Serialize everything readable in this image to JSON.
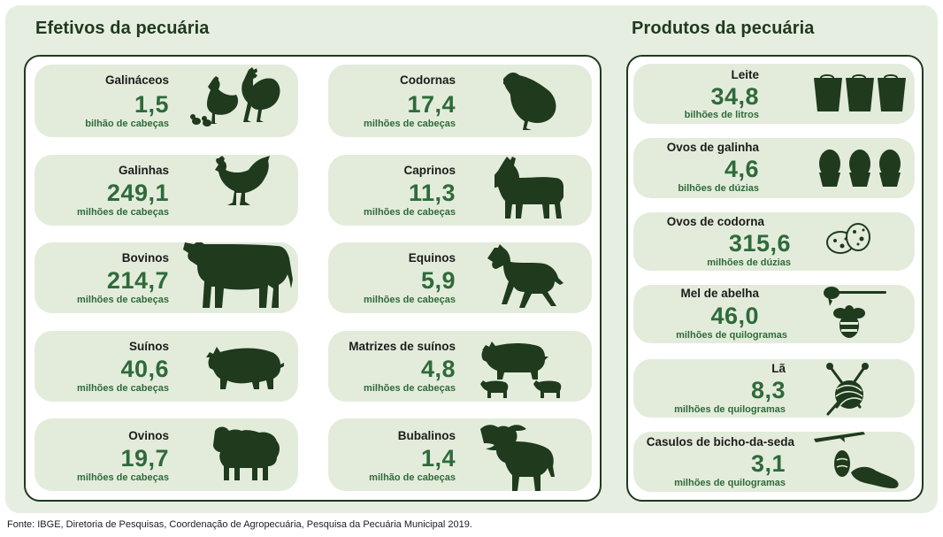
{
  "headings": {
    "efetivos": "Efetivos da pecuária",
    "produtos": "Produtos da pecuária"
  },
  "efetivos": {
    "galinaceos": {
      "label": "Galináceos",
      "value": "1,5",
      "unit": "bilhão de cabeças",
      "icon": "rooster-hen-chick-icon"
    },
    "galinhas": {
      "label": "Galinhas",
      "value": "249,1",
      "unit": "milhões de cabeças",
      "icon": "hen-icon"
    },
    "bovinos": {
      "label": "Bovinos",
      "value": "214,7",
      "unit": "milhões de cabeças",
      "icon": "cow-icon"
    },
    "suinos": {
      "label": "Suínos",
      "value": "40,6",
      "unit": "milhões de cabeças",
      "icon": "pig-icon"
    },
    "ovinos": {
      "label": "Ovinos",
      "value": "19,7",
      "unit": "milhões de cabeças",
      "icon": "sheep-icon"
    },
    "codornas": {
      "label": "Codornas",
      "value": "17,4",
      "unit": "milhões de cabeças",
      "icon": "quail-icon"
    },
    "caprinos": {
      "label": "Caprinos",
      "value": "11,3",
      "unit": "milhões de cabeças",
      "icon": "goat-icon"
    },
    "equinos": {
      "label": "Equinos",
      "value": "5,9",
      "unit": "milhões de cabeças",
      "icon": "horse-icon"
    },
    "matrizes": {
      "label": "Matrizes de suínos",
      "value": "4,8",
      "unit": "milhões de cabeças",
      "icon": "sow-piglets-icon"
    },
    "bubalinos": {
      "label": "Bubalinos",
      "value": "1,4",
      "unit": "milhão de cabeças",
      "icon": "buffalo-icon"
    }
  },
  "produtos": {
    "leite": {
      "label": "Leite",
      "value": "34,8",
      "unit": "bilhões de litros",
      "icon": "milk-buckets-icon"
    },
    "ovos_galinha": {
      "label": "Ovos de galinha",
      "value": "4,6",
      "unit": "bilhões de dúzias",
      "icon": "eggs-icon"
    },
    "ovos_codorna": {
      "label": "Ovos de codorna",
      "value": "315,6",
      "unit": "milhões de dúzias",
      "icon": "quail-eggs-icon"
    },
    "mel": {
      "label": "Mel de abelha",
      "value": "46,0",
      "unit": "milhões de quilogramas",
      "icon": "honey-bee-icon"
    },
    "la": {
      "label": "Lã",
      "value": "8,3",
      "unit": "milhões de quilogramas",
      "icon": "yarn-ball-icon"
    },
    "casulos": {
      "label": "Casulos de bicho-da-seda",
      "value": "3,1",
      "unit": "milhões de quilogramas",
      "icon": "silkworm-cocoon-icon"
    }
  },
  "footer": "Fonte: IBGE, Diretoria de Pesquisas, Coordenação de Agropecuária, Pesquisa da Pecuária Municipal 2019.",
  "colors": {
    "background": "#e6eee1",
    "card": "#e3ecdb",
    "dark_green": "#1f3a1d",
    "value_green": "#2f6a3b",
    "panel": "#ffffff"
  }
}
